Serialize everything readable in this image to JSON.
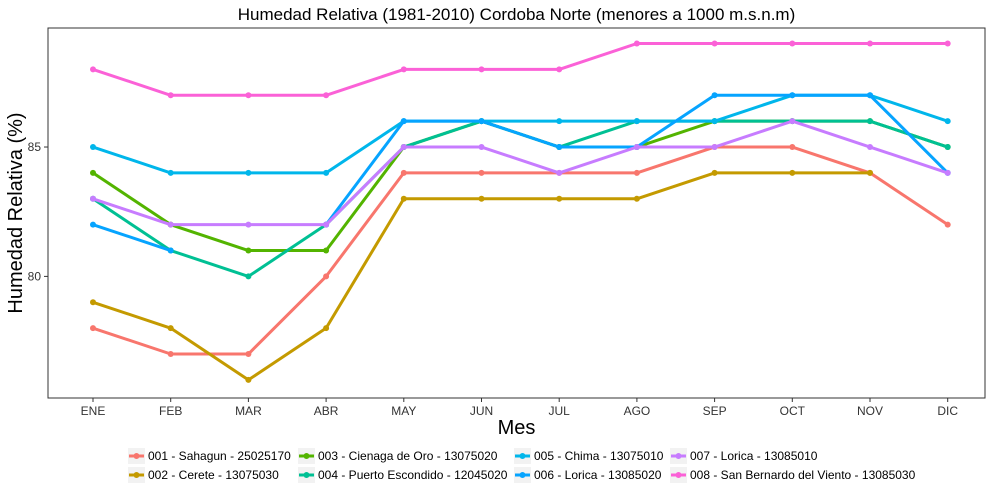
{
  "chart_data": {
    "type": "line",
    "title": "Humedad Relativa (1981-2010) Cordoba Norte (menores a 1000 m.s.n.m)",
    "xlabel": "Mes",
    "ylabel": "Humedad Relativa (%)",
    "categories": [
      "ENE",
      "FEB",
      "MAR",
      "ABR",
      "MAY",
      "JUN",
      "JUL",
      "AGO",
      "SEP",
      "OCT",
      "NOV",
      "DIC"
    ],
    "ylim": [
      75.3,
      89.6
    ],
    "yticks": [
      80,
      85
    ],
    "grid": false,
    "legend_position": "bottom",
    "series": [
      {
        "name": "001 - Sahagun - 25025170",
        "color": "#F8766D",
        "values": [
          78,
          77,
          77,
          80,
          84,
          84,
          84,
          84,
          85,
          85,
          84,
          82
        ]
      },
      {
        "name": "002 - Cerete - 13075030",
        "color": "#C49A00",
        "values": [
          79,
          78,
          76,
          78,
          83,
          83,
          83,
          83,
          84,
          84,
          84,
          null
        ]
      },
      {
        "name": "003 - Cienaga de Oro - 13075020",
        "color": "#53B400",
        "values": [
          84,
          82,
          81,
          81,
          85,
          86,
          85,
          85,
          86,
          86,
          86,
          85
        ]
      },
      {
        "name": "004 - Puerto Escondido - 12045020",
        "color": "#00C094",
        "values": [
          83,
          81,
          80,
          82,
          85,
          86,
          85,
          86,
          86,
          86,
          86,
          85
        ]
      },
      {
        "name": "005 - Chima - 13075010",
        "color": "#00B6EB",
        "values": [
          85,
          84,
          84,
          84,
          86,
          86,
          86,
          86,
          86,
          87,
          87,
          86
        ]
      },
      {
        "name": "006 - Lorica - 13085020",
        "color": "#06A4FF",
        "values": [
          82,
          81,
          null,
          82,
          86,
          86,
          85,
          85,
          87,
          87,
          87,
          84
        ]
      },
      {
        "name": "007 - Lorica - 13085010",
        "color": "#C77CFF",
        "values": [
          83,
          82,
          82,
          82,
          85,
          85,
          84,
          85,
          85,
          86,
          85,
          84
        ]
      },
      {
        "name": "008 - San Bernardo del Viento - 13085030",
        "color": "#FB61D7",
        "values": [
          88,
          87,
          87,
          87,
          88,
          88,
          88,
          89,
          89,
          89,
          89,
          89
        ]
      }
    ],
    "legend_layout": [
      [
        "001 - Sahagun - 25025170",
        "003 - Cienaga de Oro - 13075020",
        "005 - Chima - 13075010",
        "007 - Lorica - 13085010"
      ],
      [
        "002 - Cerete - 13075030",
        "004 - Puerto Escondido - 12045020",
        "006 - Lorica - 13085020",
        "008 - San Bernardo del Viento - 13085030"
      ]
    ]
  }
}
